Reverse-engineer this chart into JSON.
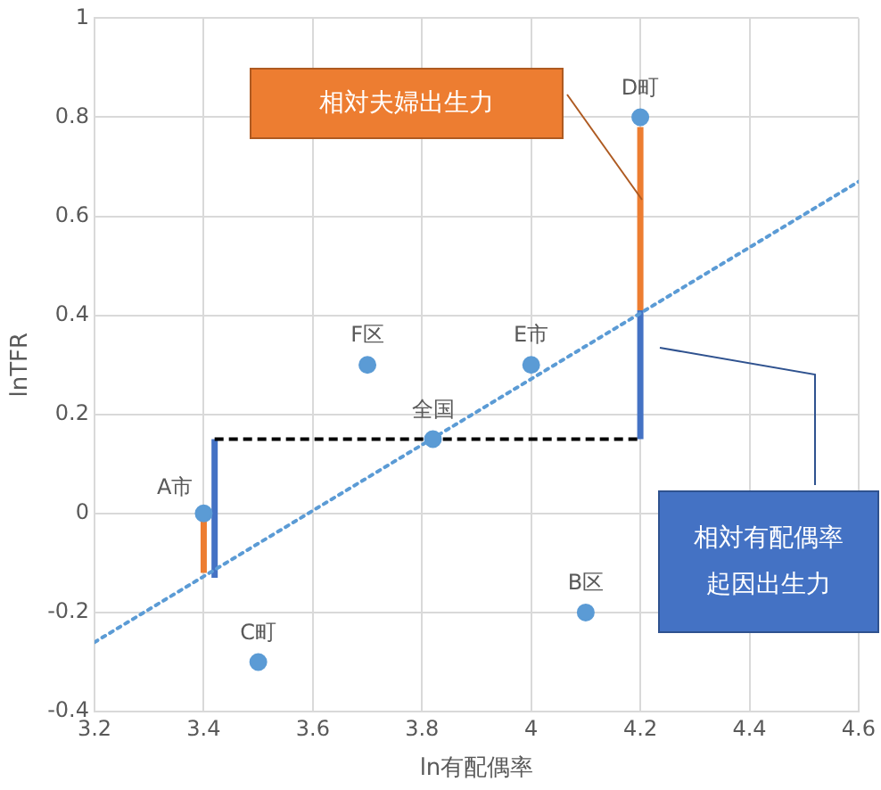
{
  "chart_data": {
    "type": "scatter",
    "xlabel": "ln有配偶率",
    "ylabel": "lnTFR",
    "xlim": [
      3.2,
      4.6
    ],
    "xticks": [
      3.2,
      3.4,
      3.6,
      3.8,
      4,
      4.2,
      4.4,
      4.6
    ],
    "ylim": [
      -0.4,
      1
    ],
    "yticks": [
      -0.4,
      -0.2,
      0,
      0.2,
      0.4,
      0.6,
      0.8,
      1
    ],
    "grid": true,
    "legend": false,
    "marker": "circle",
    "series": [
      {
        "name": "A市",
        "color": "#5b9bd5",
        "x": [
          3.4
        ],
        "values": [
          0
        ]
      },
      {
        "name": "B区",
        "color": "#5b9bd5",
        "x": [
          4.1
        ],
        "values": [
          -0.2
        ]
      },
      {
        "name": "C町",
        "color": "#5b9bd5",
        "x": [
          3.5
        ],
        "values": [
          -0.3
        ]
      },
      {
        "name": "D町",
        "color": "#5b9bd5",
        "x": [
          4.2
        ],
        "values": [
          0.8
        ]
      },
      {
        "name": "E市",
        "color": "#5b9bd5",
        "x": [
          4.0
        ],
        "values": [
          0.3
        ]
      },
      {
        "name": "F区",
        "color": "#5b9bd5",
        "x": [
          3.7
        ],
        "values": [
          0.3
        ]
      },
      {
        "name": "全国",
        "color": "#5b9bd5",
        "x": [
          3.82
        ],
        "values": [
          0.15
        ]
      },
      {
        "type": "line",
        "color": "#5b9bd5",
        "line_style": "dotted",
        "marker": "none",
        "x": [
          3.2,
          4.6
        ],
        "values": [
          -0.26,
          0.67
        ]
      },
      {
        "type": "line",
        "color": "#000000",
        "line_style": "dashed",
        "marker": "none",
        "x": [
          3.42,
          4.2
        ],
        "values": [
          0.15,
          0.15
        ]
      },
      {
        "type": "line",
        "color": "#ed7d31",
        "line_style": "solid",
        "marker": "none",
        "x": [
          4.2,
          4.2
        ],
        "values": [
          0.41,
          0.78
        ]
      },
      {
        "type": "line",
        "color": "#4472c4",
        "line_style": "solid",
        "marker": "none",
        "x": [
          4.2,
          4.2
        ],
        "values": [
          0.15,
          0.41
        ]
      },
      {
        "type": "line",
        "color": "#ed7d31",
        "line_style": "solid",
        "marker": "none",
        "x": [
          3.4,
          3.4
        ],
        "values": [
          -0.12,
          0
        ]
      },
      {
        "type": "line",
        "color": "#4472c4",
        "line_style": "solid",
        "marker": "none",
        "x": [
          3.42,
          3.42
        ],
        "values": [
          -0.13,
          0.15
        ]
      }
    ],
    "annotations": [
      "相対夫婦出生力",
      "相対有配偶率起因出生力"
    ]
  }
}
